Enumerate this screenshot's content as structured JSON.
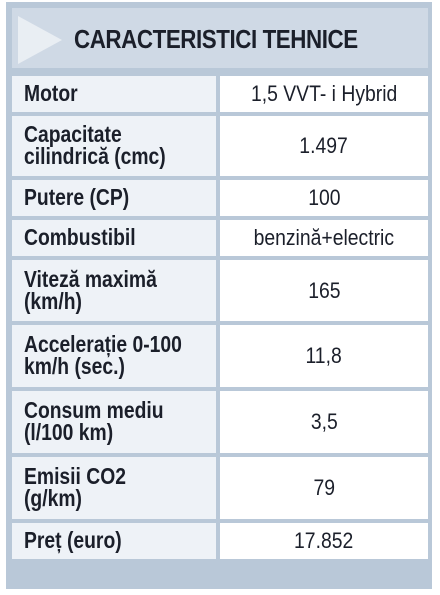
{
  "header": {
    "title": "CARACTERISTICI TEHNICE"
  },
  "rows": [
    {
      "label": "Motor",
      "value": "1,5 VVT- i Hybrid"
    },
    {
      "label": "Capacitate\ncilindrică (cmc)",
      "value": "1.497"
    },
    {
      "label": "Putere (CP)",
      "value": "100"
    },
    {
      "label": "Combustibil",
      "value": "benzină+electric"
    },
    {
      "label": "Viteză maximă\n(km/h)",
      "value": "165"
    },
    {
      "label": "Accelerație 0-100\nkm/h (sec.)",
      "value": "11,8"
    },
    {
      "label": "Consum mediu\n(l/100 km)",
      "value": "3,5"
    },
    {
      "label": "Emisii CO2\n(g/km)",
      "value": "79"
    },
    {
      "label": "Preț (euro)",
      "value": "17.852"
    }
  ],
  "colors": {
    "frame": "#b9c8d8",
    "header_bg": "#cfd9e5",
    "label_bg": "#eef2f7",
    "value_bg": "#ffffff",
    "text": "#1b1f2a"
  }
}
